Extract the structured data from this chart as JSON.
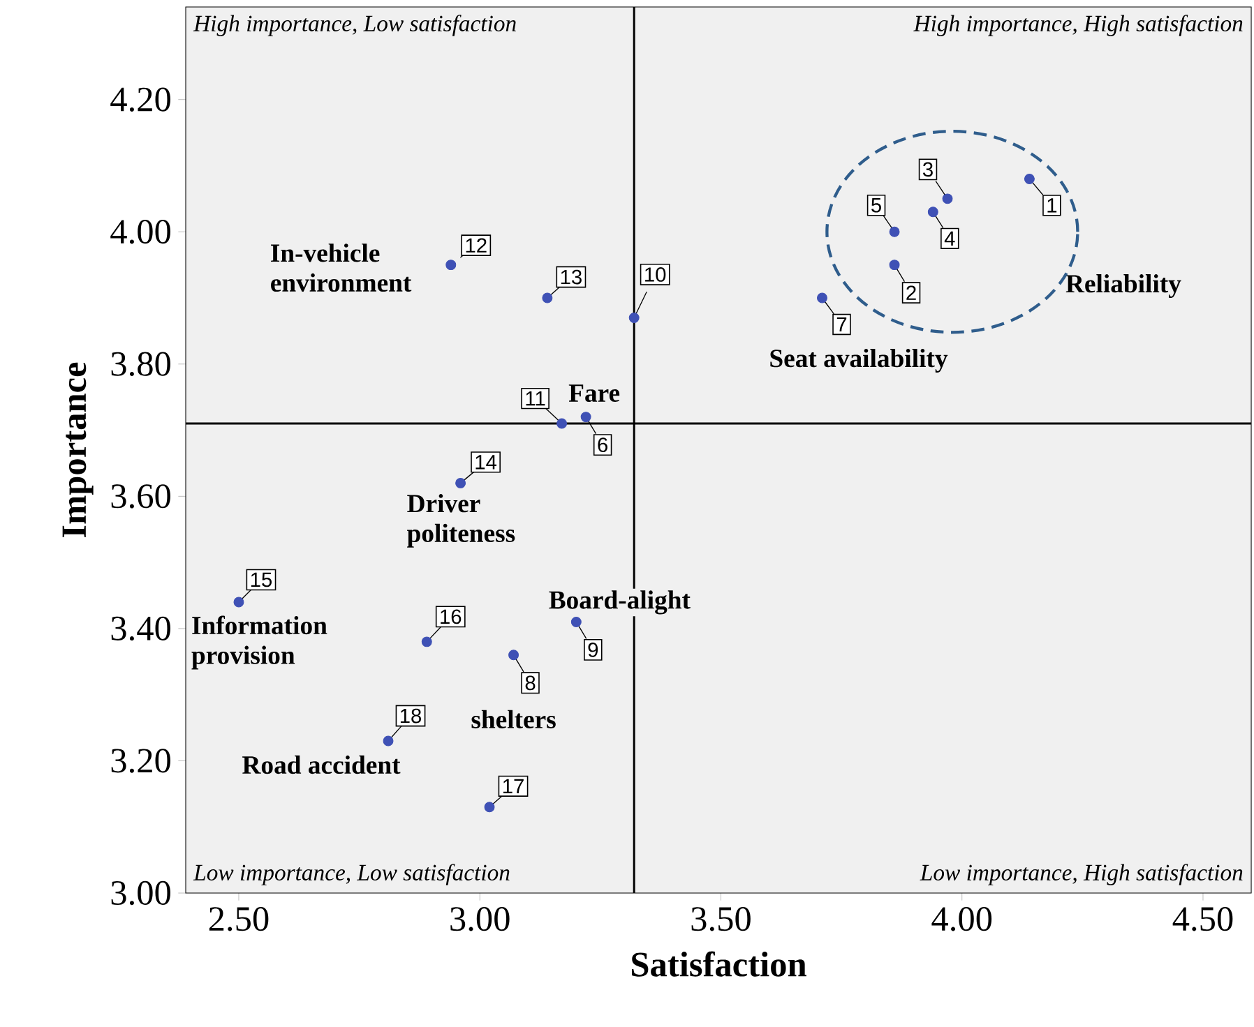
{
  "chart_data": {
    "type": "scatter",
    "xlabel": "Satisfaction",
    "ylabel": "Importance",
    "x": [
      4.14,
      3.86,
      3.97,
      3.94,
      3.86,
      3.22,
      3.71,
      3.07,
      3.2,
      3.32,
      3.17,
      2.94,
      3.14,
      2.96,
      2.5,
      2.89,
      3.02,
      2.81
    ],
    "values": [
      4.08,
      3.95,
      4.05,
      4.03,
      4.0,
      3.72,
      3.9,
      3.36,
      3.41,
      3.87,
      3.71,
      3.95,
      3.9,
      3.62,
      3.44,
      3.38,
      3.13,
      3.23
    ],
    "color": "#3f51b5",
    "marker": "circle",
    "grid": false,
    "xlim": [
      2.39,
      4.6
    ],
    "ylim": [
      3.0,
      4.34
    ],
    "xticks": [
      {
        "value": 2.5,
        "label": "2.50"
      },
      {
        "value": 3.0,
        "label": "3.00"
      },
      {
        "value": 3.5,
        "label": "3.50"
      },
      {
        "value": 4.0,
        "label": "4.00"
      },
      {
        "value": 4.5,
        "label": "4.50"
      }
    ],
    "yticks": [
      {
        "value": 3.0,
        "label": "3.00"
      },
      {
        "value": 3.2,
        "label": "3.20"
      },
      {
        "value": 3.4,
        "label": "3.40"
      },
      {
        "value": 3.6,
        "label": "3.60"
      },
      {
        "value": 3.8,
        "label": "3.80"
      },
      {
        "value": 4.0,
        "label": "4.00"
      },
      {
        "value": 4.2,
        "label": "4.20"
      }
    ],
    "ref_lines": [
      {
        "axis": "x",
        "value": 3.32,
        "color": "#000000"
      },
      {
        "axis": "y",
        "value": 3.71,
        "color": "#000000"
      }
    ],
    "annotations": [
      {
        "text": "1",
        "x": 4.14,
        "y": 4.08
      },
      {
        "text": "2",
        "x": 3.86,
        "y": 3.95
      },
      {
        "text": "3",
        "x": 3.97,
        "y": 4.05
      },
      {
        "text": "4",
        "x": 3.94,
        "y": 4.03
      },
      {
        "text": "5",
        "x": 3.86,
        "y": 4.0
      },
      {
        "text": "6",
        "x": 3.22,
        "y": 3.72
      },
      {
        "text": "7",
        "x": 3.71,
        "y": 3.9
      },
      {
        "text": "8",
        "x": 3.07,
        "y": 3.36
      },
      {
        "text": "9",
        "x": 3.2,
        "y": 3.41
      },
      {
        "text": "10",
        "x": 3.32,
        "y": 3.87
      },
      {
        "text": "11",
        "x": 3.17,
        "y": 3.71
      },
      {
        "text": "12",
        "x": 2.94,
        "y": 3.95
      },
      {
        "text": "13",
        "x": 3.14,
        "y": 3.9
      },
      {
        "text": "14",
        "x": 2.96,
        "y": 3.62
      },
      {
        "text": "15",
        "x": 2.5,
        "y": 3.44
      },
      {
        "text": "16",
        "x": 2.89,
        "y": 3.38
      },
      {
        "text": "17",
        "x": 3.02,
        "y": 3.13
      },
      {
        "text": "18",
        "x": 2.81,
        "y": 3.23
      },
      {
        "text": "In-vehicle environment",
        "x": 2.94,
        "y": 3.95
      },
      {
        "text": "Fare",
        "x": 3.22,
        "y": 3.72
      },
      {
        "text": "Driver politeness",
        "x": 2.96,
        "y": 3.62
      },
      {
        "text": "Seat availability",
        "x": 3.71,
        "y": 3.9
      },
      "Reliability",
      {
        "text": "Information provision",
        "x": 2.5,
        "y": 3.44
      },
      {
        "text": "Board-alight",
        "x": 3.2,
        "y": 3.41
      },
      {
        "text": "shelters",
        "x": 3.07,
        "y": 3.36
      },
      {
        "text": "Road accident",
        "x": 2.81,
        "y": 3.23
      },
      "High importance, Low satisfaction",
      "High importance, High satisfaction",
      "Low importance, Low satisfaction",
      "Low importance, High satisfaction"
    ]
  }
}
